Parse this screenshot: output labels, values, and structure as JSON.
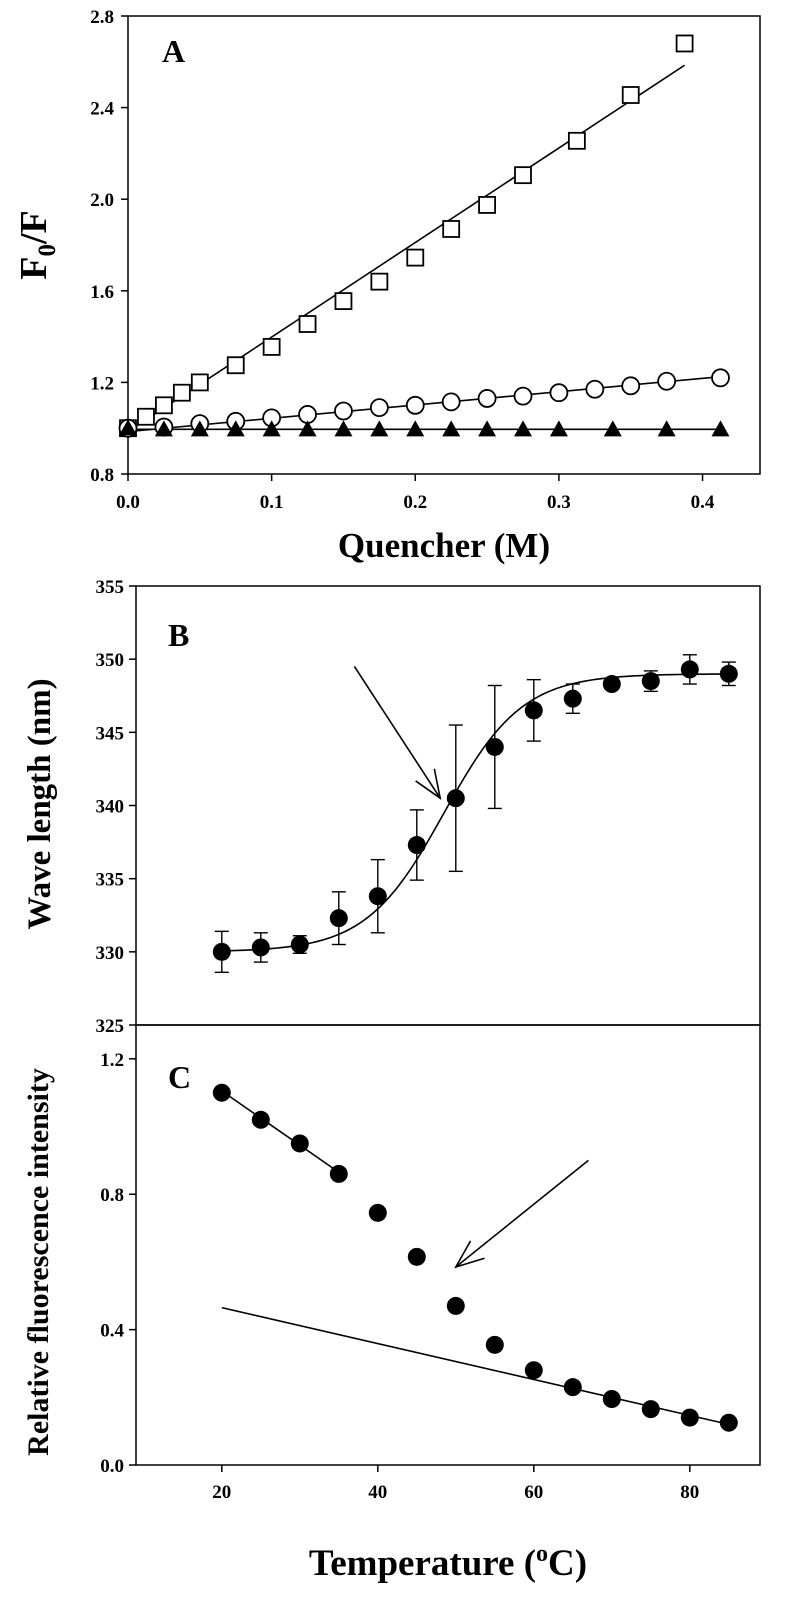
{
  "chart_data": [
    {
      "id": "A",
      "type": "scatter",
      "panel_label": "A",
      "xlabel": "Quencher (M)",
      "ylabel_main": "F",
      "ylabel_sub": "0",
      "ylabel_tail": "/F",
      "xlim": [
        0,
        0.44
      ],
      "ylim": [
        0.8,
        2.8
      ],
      "xticks": [
        0.0,
        0.1,
        0.2,
        0.3,
        0.4
      ],
      "xtick_labels": [
        "0.0",
        "0.1",
        "0.2",
        "0.3",
        "0.4"
      ],
      "yticks": [
        0.8,
        1.2,
        1.6,
        2.0,
        2.4,
        2.8
      ],
      "ytick_labels": [
        "0.8",
        "1.2",
        "1.6",
        "2.0",
        "2.4",
        "2.8"
      ],
      "series": [
        {
          "name": "squares",
          "marker": "open-square",
          "x": [
            0.0,
            0.0125,
            0.025,
            0.0375,
            0.05,
            0.075,
            0.1,
            0.125,
            0.15,
            0.175,
            0.2,
            0.225,
            0.25,
            0.275,
            0.3125,
            0.35,
            0.3875
          ],
          "y": [
            1.0,
            1.05,
            1.1,
            1.155,
            1.2,
            1.275,
            1.355,
            1.455,
            1.555,
            1.64,
            1.745,
            1.87,
            1.975,
            2.105,
            2.255,
            2.455,
            2.68
          ],
          "fit": {
            "x": [
              0.0,
              0.3875
            ],
            "y": [
              0.985,
              2.585
            ]
          }
        },
        {
          "name": "circles",
          "marker": "open-circle",
          "x": [
            0.0,
            0.025,
            0.05,
            0.075,
            0.1,
            0.125,
            0.15,
            0.175,
            0.2,
            0.225,
            0.25,
            0.275,
            0.3,
            0.325,
            0.35,
            0.375,
            0.4125
          ],
          "y": [
            1.0,
            1.005,
            1.02,
            1.03,
            1.045,
            1.06,
            1.075,
            1.09,
            1.1,
            1.115,
            1.13,
            1.14,
            1.155,
            1.17,
            1.185,
            1.205,
            1.22
          ],
          "fit": {
            "x": [
              0.0,
              0.4125
            ],
            "y": [
              0.985,
              1.225
            ]
          }
        },
        {
          "name": "triangles",
          "marker": "filled-triangle",
          "x": [
            0.0,
            0.025,
            0.05,
            0.075,
            0.1,
            0.125,
            0.15,
            0.175,
            0.2,
            0.225,
            0.25,
            0.275,
            0.3,
            0.3375,
            0.375,
            0.4125
          ],
          "y": [
            1.0,
            0.995,
            0.995,
            0.995,
            0.995,
            0.995,
            0.995,
            0.995,
            0.995,
            0.995,
            0.995,
            0.995,
            0.995,
            0.995,
            0.995,
            0.995
          ],
          "fit": {
            "x": [
              0.0,
              0.4125
            ],
            "y": [
              0.995,
              0.995
            ]
          }
        }
      ]
    },
    {
      "id": "B",
      "type": "scatter",
      "panel_label": "B",
      "xlabel": "",
      "ylabel": "Wave length (nm)",
      "xlim": [
        9,
        89
      ],
      "ylim": [
        325,
        355
      ],
      "yticks": [
        325,
        330,
        335,
        340,
        345,
        350,
        355
      ],
      "ytick_labels": [
        "325",
        "330",
        "335",
        "340",
        "345",
        "350",
        "355"
      ],
      "series": [
        {
          "name": "wavelength",
          "marker": "filled-circle",
          "x": [
            20,
            25,
            30,
            35,
            40,
            45,
            50,
            55,
            60,
            65,
            70,
            75,
            80,
            85
          ],
          "y": [
            330.0,
            330.3,
            330.5,
            332.3,
            333.8,
            337.3,
            340.5,
            344.0,
            346.5,
            347.3,
            348.3,
            348.5,
            349.3,
            349.0
          ],
          "error": [
            1.4,
            1.0,
            0.6,
            1.8,
            2.5,
            2.4,
            5.0,
            4.2,
            2.1,
            1.0,
            0.2,
            0.7,
            1.0,
            0.8
          ],
          "fit": {
            "type": "sigmoid",
            "bottom": 330.0,
            "top": 349.0,
            "midpoint": 48.5,
            "slope": 5.0
          }
        }
      ],
      "annotations": [
        {
          "type": "arrow",
          "from": [
            37,
            349.5
          ],
          "to": [
            48,
            340.5
          ]
        }
      ]
    },
    {
      "id": "C",
      "type": "scatter",
      "panel_label": "C",
      "xlabel_main": "Temperature (",
      "xlabel_sup": "o",
      "xlabel_tail": "C)",
      "ylabel": "Relative fluorescence intensity",
      "xlim": [
        9,
        89
      ],
      "ylim": [
        0.0,
        1.3
      ],
      "xticks": [
        20,
        40,
        60,
        80
      ],
      "xtick_labels": [
        "20",
        "40",
        "60",
        "80"
      ],
      "yticks": [
        0.0,
        0.4,
        0.8,
        1.2
      ],
      "ytick_labels": [
        "0.0",
        "0.4",
        "0.8",
        "1.2"
      ],
      "series": [
        {
          "name": "intensity",
          "marker": "filled-circle",
          "x": [
            20,
            25,
            30,
            35,
            40,
            45,
            50,
            55,
            60,
            65,
            70,
            75,
            80,
            85
          ],
          "y": [
            1.1,
            1.02,
            0.95,
            0.86,
            0.745,
            0.615,
            0.47,
            0.355,
            0.28,
            0.23,
            0.195,
            0.165,
            0.14,
            0.125
          ]
        }
      ],
      "fits": [
        {
          "x": [
            20,
            35
          ],
          "y": [
            1.105,
            0.865
          ]
        },
        {
          "x": [
            20,
            85
          ],
          "y": [
            0.465,
            0.12
          ]
        }
      ],
      "annotations": [
        {
          "type": "arrow",
          "from": [
            67,
            0.9
          ],
          "to": [
            50,
            0.585
          ]
        }
      ]
    }
  ]
}
